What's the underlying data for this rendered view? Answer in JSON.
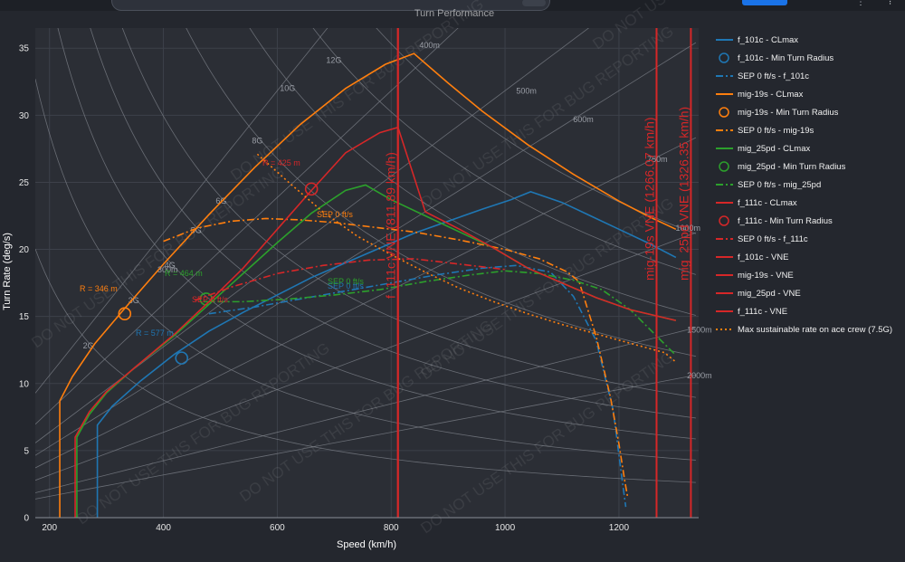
{
  "chart_data": {
    "type": "line",
    "title": "Turn Performance",
    "xlabel": "Speed (km/h)",
    "ylabel": "Turn Rate (deg/s)",
    "xlim": [
      175,
      1340
    ],
    "ylim": [
      0,
      36.5
    ],
    "xticks": [
      200,
      400,
      600,
      800,
      1000,
      1200
    ],
    "yticks": [
      0,
      5,
      10,
      15,
      20,
      25,
      30,
      35
    ],
    "grid": true,
    "legend_position": "right",
    "watermark": "DO NOT USE THIS FOR BUG REPORTING",
    "g_lines": [
      {
        "label": "2G",
        "g": 2
      },
      {
        "label": "3G",
        "g": 3
      },
      {
        "label": "4G",
        "g": 4
      },
      {
        "label": "5G",
        "g": 5
      },
      {
        "label": "6G",
        "g": 6
      },
      {
        "label": "8G",
        "g": 8
      },
      {
        "label": "10G",
        "g": 10
      },
      {
        "label": "12G",
        "g": 12
      },
      {
        "label": "14G",
        "g": 14
      }
    ],
    "radius_lines": [
      {
        "label": "300m",
        "r": 300
      },
      {
        "label": "400m",
        "r": 400
      },
      {
        "label": "500m",
        "r": 500
      },
      {
        "label": "600m",
        "r": 600
      },
      {
        "label": "750m",
        "r": 750
      },
      {
        "label": "1000m",
        "r": 1000
      },
      {
        "label": "1500m",
        "r": 1500
      },
      {
        "label": "2000m",
        "r": 2000
      }
    ],
    "series": [
      {
        "name": "f_101c - CLmax",
        "kind": "line",
        "dash": "solid",
        "color": "#1f77b4",
        "x": [
          284,
          284,
          310,
          360,
          420,
          480,
          540,
          600,
          660,
          720,
          780,
          840,
          900,
          960,
          1010,
          1045,
          1100,
          1150,
          1200,
          1250,
          1300
        ],
        "y": [
          0,
          6.9,
          8.3,
          10.2,
          12.2,
          13.9,
          15.3,
          16.6,
          17.9,
          19.0,
          20.1,
          21.2,
          22.1,
          23.0,
          23.7,
          24.3,
          23.5,
          22.5,
          21.5,
          20.5,
          19.4
        ]
      },
      {
        "name": "f_101c - Min Turn Radius",
        "kind": "marker",
        "color": "#1f77b4",
        "x": [
          432
        ],
        "y": [
          11.9
        ],
        "label": "R = 577 m"
      },
      {
        "name": "SEP 0 ft/s - f_101c",
        "kind": "line",
        "dash": "dashdot",
        "color": "#1f77b4",
        "x": [
          480,
          560,
          640,
          720,
          800,
          880,
          960,
          1020,
          1080,
          1120,
          1160,
          1190,
          1205,
          1212
        ],
        "y": [
          15.2,
          15.7,
          16.3,
          16.9,
          17.5,
          18.1,
          18.6,
          18.8,
          18.3,
          16.5,
          13.2,
          8.0,
          3.0,
          0.8
        ],
        "label": "SEP 0 ft/s"
      },
      {
        "name": "mig-19s - CLmax",
        "kind": "line",
        "dash": "solid",
        "color": "#ff7f0e",
        "x": [
          218,
          218,
          240,
          280,
          330,
          400,
          480,
          560,
          640,
          720,
          790,
          840,
          900,
          960,
          1040,
          1120,
          1200,
          1250,
          1300
        ],
        "y": [
          0,
          8.7,
          10.5,
          13.0,
          15.5,
          18.9,
          22.6,
          26.1,
          29.3,
          32.0,
          33.8,
          34.6,
          32.4,
          30.3,
          27.8,
          25.6,
          23.6,
          22.5,
          21.5
        ]
      },
      {
        "name": "mig-19s - Min Turn Radius",
        "kind": "marker",
        "color": "#ff7f0e",
        "x": [
          332
        ],
        "y": [
          15.2
        ],
        "label": "R = 346 m"
      },
      {
        "name": "SEP 0 ft/s - mig-19s",
        "kind": "line",
        "dash": "dashdot",
        "color": "#ff7f0e",
        "x": [
          400,
          460,
          520,
          580,
          640,
          700,
          760,
          840,
          920,
          1000,
          1060,
          1110,
          1130,
          1160,
          1185,
          1200,
          1210,
          1215
        ],
        "y": [
          20.6,
          21.6,
          22.1,
          22.3,
          22.2,
          22.0,
          21.7,
          21.3,
          20.7,
          20.0,
          19.3,
          18.3,
          17.6,
          13.5,
          9.0,
          5.5,
          2.8,
          1.6
        ],
        "label": "SEP 0 ft/s"
      },
      {
        "name": "mig_25pd - CLmax",
        "kind": "line",
        "dash": "solid",
        "color": "#2ca02c",
        "x": [
          248,
          248,
          270,
          300,
          350,
          420,
          480,
          540,
          600,
          660,
          720,
          755,
          800,
          860,
          920,
          980,
          1040,
          1100,
          1160,
          1220,
          1300
        ],
        "y": [
          0,
          6.0,
          7.7,
          9.3,
          11.2,
          13.6,
          15.9,
          18.2,
          20.5,
          22.7,
          24.4,
          24.8,
          23.7,
          22.5,
          21.3,
          20.1,
          18.6,
          17.5,
          16.4,
          15.5,
          14.7
        ]
      },
      {
        "name": "mig_25pd - Min Turn Radius",
        "kind": "marker",
        "color": "#2ca02c",
        "x": [
          475
        ],
        "y": [
          16.3
        ],
        "label": "R = 464 m"
      },
      {
        "name": "SEP 0 ft/s - mig_25pd",
        "kind": "line",
        "dash": "dashdot",
        "color": "#2ca02c",
        "x": [
          470,
          540,
          620,
          700,
          780,
          860,
          940,
          1000,
          1060,
          1120,
          1170,
          1220,
          1260,
          1300
        ],
        "y": [
          16.1,
          16.1,
          16.3,
          16.6,
          17.0,
          17.6,
          18.1,
          18.4,
          18.2,
          17.7,
          17.0,
          15.5,
          13.8,
          12.1
        ],
        "label": "SEP 0 ft/s"
      },
      {
        "name": "f_111c - CLmax",
        "kind": "line",
        "dash": "solid",
        "color": "#d62728",
        "x": [
          245,
          245,
          270,
          300,
          350,
          420,
          480,
          540,
          600,
          660,
          720,
          780,
          812,
          860,
          920,
          980,
          1040,
          1100,
          1160,
          1220,
          1300
        ],
        "y": [
          0,
          6.0,
          7.9,
          9.4,
          11.2,
          13.7,
          16.1,
          18.6,
          21.5,
          24.4,
          27.2,
          28.7,
          29.1,
          22.8,
          21.5,
          20.1,
          18.6,
          17.5,
          16.4,
          15.5,
          14.7
        ]
      },
      {
        "name": "f_111c - Min Turn Radius",
        "kind": "marker",
        "color": "#d62728",
        "x": [
          660
        ],
        "y": [
          24.5
        ],
        "label": "R = 425 m"
      },
      {
        "name": "SEP 0 ft/s - f_111c",
        "kind": "line",
        "dash": "dashdot",
        "color": "#d62728",
        "x": [
          455,
          520,
          600,
          680,
          760,
          840,
          900,
          960,
          1000
        ],
        "y": [
          16.2,
          17.2,
          18.2,
          18.8,
          19.2,
          19.3,
          19.0,
          18.7,
          18.5
        ],
        "label": "SEP 0 ft/s"
      },
      {
        "name": "f_101c - VNE",
        "kind": "vline",
        "color": "#d62728",
        "x": 811.89,
        "label": "f_111c VNE (811.89 km/h)"
      },
      {
        "name": "mig-19s - VNE",
        "kind": "vline",
        "color": "#d62728",
        "x": 1266.07,
        "label": "mig-19s VNE (1266.07 km/h)"
      },
      {
        "name": "mig_25pd - VNE",
        "kind": "vline",
        "color": "#d62728",
        "x": 1326.35,
        "label": "mig_25pd VNE (1326.35 km/h)"
      },
      {
        "name": "f_111c - VNE",
        "kind": "vline",
        "color": "#d62728",
        "x": 811.89
      },
      {
        "name": "Max sustainable rate on ace crew (7.5G)",
        "kind": "line",
        "dash": "dot",
        "color": "#ff7f0e",
        "x": [
          565,
          620,
          680,
          740,
          800,
          860,
          920,
          980,
          1040,
          1100,
          1160,
          1220,
          1280,
          1300
        ],
        "y": [
          27.1,
          25.0,
          22.8,
          21.0,
          19.6,
          18.3,
          17.1,
          16.1,
          15.2,
          14.4,
          13.7,
          13.0,
          12.3,
          11.6
        ]
      }
    ]
  }
}
